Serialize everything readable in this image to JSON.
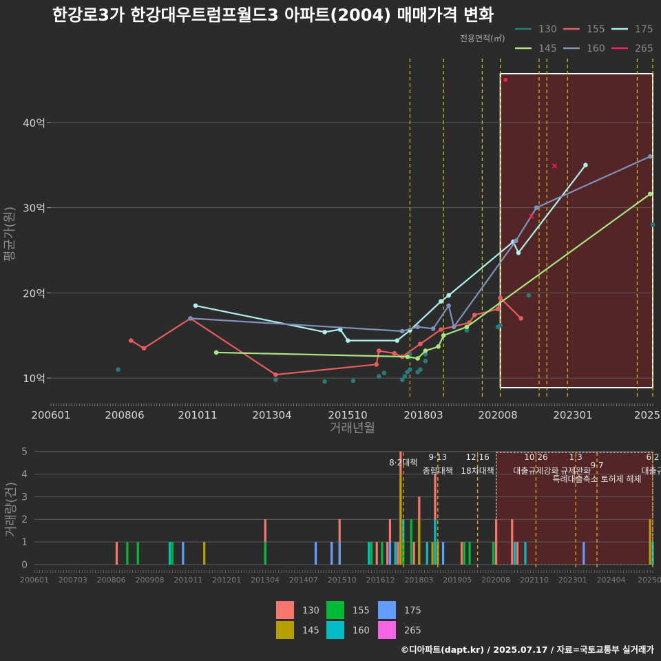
{
  "title": "한강로3가 한강대우트럼프월드3 아파트(2004) 매매가격 변화",
  "legend": {
    "title": "전용면적(㎡)",
    "items": [
      {
        "label": "130",
        "color": "#2a7a78"
      },
      {
        "label": "155",
        "color": "#e85c5c"
      },
      {
        "label": "175",
        "color": "#aef0ee"
      },
      {
        "label": "145",
        "color": "#a8e67f"
      },
      {
        "label": "160",
        "color": "#7f93ba"
      },
      {
        "label": "265",
        "color": "#ff1a5a"
      }
    ]
  },
  "bottom_legend": {
    "items": [
      {
        "label": "130",
        "color": "#f8766d"
      },
      {
        "label": "155",
        "color": "#00ba38"
      },
      {
        "label": "175",
        "color": "#619cff"
      },
      {
        "label": "145",
        "color": "#b79f00"
      },
      {
        "label": "160",
        "color": "#00bfc4"
      },
      {
        "label": "265",
        "color": "#f564e3"
      }
    ]
  },
  "footer": "©디아파트(dapt.kr) / 2025.07.17 / 자료=국토교통부 실거래가",
  "chart_data": [
    {
      "type": "line",
      "xlabel": "거래년월",
      "ylabel": "평균가(원)",
      "x_ticks": [
        "200601",
        "200806",
        "201011",
        "201304",
        "201510",
        "201803",
        "202008",
        "202301",
        "2025"
      ],
      "y_ticks": [
        {
          "value": 10,
          "label": "10억"
        },
        {
          "value": 20,
          "label": "20억"
        },
        {
          "value": 30,
          "label": "30억"
        },
        {
          "value": 40,
          "label": "40억"
        }
      ],
      "ylim": [
        7.5,
        47.5
      ],
      "xlim": [
        "2006-01",
        "2025-06"
      ],
      "grid": true,
      "highlight_box": {
        "x_start": "2020-07",
        "x_end": "2025-06"
      },
      "event_lines": [
        "2017-08",
        "2018-09",
        "2019-12",
        "2020-07",
        "2021-10",
        "2022-01",
        "2022-09",
        "2024-12",
        "2025-06"
      ],
      "series": [
        {
          "name": "130",
          "color": "#2a7a78",
          "mode": "points",
          "points": [
            [
              "2008-03",
              11.0
            ],
            [
              "2013-04",
              9.8
            ],
            [
              "2014-11",
              9.6
            ],
            [
              "2015-10",
              9.7
            ],
            [
              "2016-08",
              10.2
            ],
            [
              "2016-10",
              10.6
            ],
            [
              "2017-05",
              9.8
            ],
            [
              "2017-06",
              10.2
            ],
            [
              "2017-07",
              10.7
            ],
            [
              "2017-08",
              11.0
            ],
            [
              "2017-08",
              12.8
            ],
            [
              "2017-11",
              10.7
            ],
            [
              "2017-12",
              11.0
            ],
            [
              "2018-02",
              12.0
            ],
            [
              "2018-02",
              12.8
            ],
            [
              "2019-06",
              15.6
            ],
            [
              "2020-06",
              16.0
            ],
            [
              "2020-07",
              16.2
            ],
            [
              "2021-06",
              19.7
            ],
            [
              "2025-06",
              28.0
            ]
          ]
        },
        {
          "name": "155",
          "color": "#e85c5c",
          "mode": "line",
          "points": [
            [
              "2008-08",
              14.4
            ],
            [
              "2009-01",
              13.5
            ],
            [
              "2010-07",
              17.0
            ],
            [
              "2013-04",
              10.4
            ],
            [
              "2016-07",
              11.6
            ],
            [
              "2016-08",
              13.2
            ],
            [
              "2017-02",
              12.9
            ],
            [
              "2017-05",
              12.5
            ],
            [
              "2017-12",
              14.0
            ],
            [
              "2018-08",
              15.7
            ],
            [
              "2019-07",
              16.5
            ],
            [
              "2019-09",
              17.4
            ],
            [
              "2020-06",
              18.1
            ],
            [
              "2020-07",
              19.4
            ],
            [
              "2021-03",
              17.0
            ]
          ]
        },
        {
          "name": "175",
          "color": "#aef0ee",
          "mode": "line",
          "points": [
            [
              "2010-09",
              18.5
            ],
            [
              "2014-11",
              15.4
            ],
            [
              "2015-05",
              15.7
            ],
            [
              "2015-08",
              14.4
            ],
            [
              "2017-03",
              14.4
            ],
            [
              "2017-08",
              15.6
            ],
            [
              "2018-08",
              19.0
            ],
            [
              "2018-11",
              19.7
            ],
            [
              "2020-12",
              26.0
            ],
            [
              "2021-02",
              24.7
            ],
            [
              "2023-04",
              35.0
            ]
          ]
        },
        {
          "name": "145",
          "color": "#a8e67f",
          "mode": "line",
          "points": [
            [
              "2011-05",
              13.0
            ],
            [
              "2017-07",
              12.5
            ],
            [
              "2017-11",
              12.3
            ],
            [
              "2018-02",
              13.2
            ],
            [
              "2018-07",
              13.7
            ],
            [
              "2018-09",
              15.0
            ],
            [
              "2019-06",
              16.0
            ],
            [
              "2025-05",
              31.6
            ]
          ]
        },
        {
          "name": "160",
          "color": "#7f93ba",
          "mode": "line",
          "points": [
            [
              "2010-07",
              17.0
            ],
            [
              "2017-05",
              15.5
            ],
            [
              "2017-11",
              16.0
            ],
            [
              "2018-05",
              15.8
            ],
            [
              "2018-11",
              18.5
            ],
            [
              "2019-01",
              16.0
            ],
            [
              "2021-01",
              26.1
            ],
            [
              "2021-09",
              30.0
            ],
            [
              "2025-05",
              36.0
            ]
          ]
        },
        {
          "name": "265",
          "color": "#ff1a5a",
          "mode": "points",
          "points": [
            [
              "2020-09",
              45.0
            ],
            [
              "2022-04",
              34.9
            ],
            [
              "2021-07",
              29.0
            ]
          ]
        }
      ]
    },
    {
      "type": "bar",
      "ylabel": "거래량(건)",
      "x_ticks": [
        "200601",
        "200703",
        "200806",
        "200908",
        "201011",
        "201201",
        "201304",
        "201407",
        "201510",
        "201612",
        "201803",
        "201905",
        "202008",
        "202110",
        "202301",
        "202404",
        "20250"
      ],
      "y_ticks": [
        0,
        1,
        2,
        3,
        4,
        5
      ],
      "ylim": [
        0,
        5.2
      ],
      "events": [
        {
          "date": "2017-08",
          "label": "8·2대책",
          "row": 0
        },
        {
          "date": "2018-09",
          "label": "9·13",
          "label2": "종합대책",
          "row": 1
        },
        {
          "date": "2019-12",
          "label": "12·16",
          "label2": "18차대책",
          "row": 1
        },
        {
          "date": "2021-10",
          "label": "10·26",
          "label2": "대출규제강화",
          "row": 1
        },
        {
          "date": "2023-01",
          "label": "1·3",
          "label2": "규제완화",
          "row": 1
        },
        {
          "date": "2023-09",
          "label": "9·7",
          "label2": "특례대출축소 토허제 해제",
          "row": 2
        },
        {
          "date": "2025-06",
          "label": "6·2",
          "label2": "대출규",
          "row": 1
        }
      ],
      "bars": [
        {
          "series": "130",
          "date": "2008-08",
          "value": 1
        },
        {
          "series": "155",
          "date": "2008-12",
          "value": 1
        },
        {
          "series": "155",
          "date": "2009-04",
          "value": 1
        },
        {
          "series": "160",
          "date": "2010-04",
          "value": 1
        },
        {
          "series": "155",
          "date": "2010-05",
          "value": 1
        },
        {
          "series": "175",
          "date": "2010-09",
          "value": 1
        },
        {
          "series": "145",
          "date": "2011-05",
          "value": 1
        },
        {
          "series": "130",
          "date": "2013-04",
          "value": 2
        },
        {
          "series": "155",
          "date": "2013-04",
          "value": 1
        },
        {
          "series": "175",
          "date": "2014-11",
          "value": 1
        },
        {
          "series": "130",
          "date": "2015-05",
          "value": 1
        },
        {
          "series": "175",
          "date": "2015-05",
          "value": 1
        },
        {
          "series": "130",
          "date": "2015-08",
          "value": 2
        },
        {
          "series": "175",
          "date": "2015-08",
          "value": 1
        },
        {
          "series": "155",
          "date": "2016-07",
          "value": 1
        },
        {
          "series": "160",
          "date": "2016-07",
          "value": 1
        },
        {
          "series": "130",
          "date": "2016-08",
          "value": 1
        },
        {
          "series": "155",
          "date": "2016-08",
          "value": 1
        },
        {
          "series": "130",
          "date": "2016-10",
          "value": 1
        },
        {
          "series": "155",
          "date": "2016-12",
          "value": 1
        },
        {
          "series": "130",
          "date": "2017-02",
          "value": 1
        },
        {
          "series": "130",
          "date": "2017-03",
          "value": 2
        },
        {
          "series": "175",
          "date": "2017-03",
          "value": 1
        },
        {
          "series": "130",
          "date": "2017-05",
          "value": 1
        },
        {
          "series": "160",
          "date": "2017-05",
          "value": 1
        },
        {
          "series": "130",
          "date": "2017-06",
          "value": 1
        },
        {
          "series": "130",
          "date": "2017-07",
          "value": 5
        },
        {
          "series": "145",
          "date": "2017-07",
          "value": 4
        },
        {
          "series": "160",
          "date": "2017-08",
          "value": 2
        },
        {
          "series": "155",
          "date": "2017-08",
          "value": 1
        },
        {
          "series": "155",
          "date": "2017-11",
          "value": 2
        },
        {
          "series": "130",
          "date": "2017-12",
          "value": 1
        },
        {
          "series": "130",
          "date": "2018-02",
          "value": 3
        },
        {
          "series": "145",
          "date": "2018-02",
          "value": 2
        },
        {
          "series": "130",
          "date": "2018-05",
          "value": 1
        },
        {
          "series": "160",
          "date": "2018-05",
          "value": 1
        },
        {
          "series": "145",
          "date": "2018-07",
          "value": 1
        },
        {
          "series": "130",
          "date": "2018-08",
          "value": 4
        },
        {
          "series": "160",
          "date": "2018-08",
          "value": 2
        },
        {
          "series": "145",
          "date": "2018-09",
          "value": 1
        },
        {
          "series": "175",
          "date": "2018-11",
          "value": 1
        },
        {
          "series": "130",
          "date": "2019-06",
          "value": 1
        },
        {
          "series": "155",
          "date": "2019-07",
          "value": 1
        },
        {
          "series": "155",
          "date": "2019-09",
          "value": 1
        },
        {
          "series": "160",
          "date": "2020-06",
          "value": 1
        },
        {
          "series": "155",
          "date": "2020-06",
          "value": 1
        },
        {
          "series": "130",
          "date": "2020-07",
          "value": 2
        },
        {
          "series": "130",
          "date": "2021-01",
          "value": 2
        },
        {
          "series": "160",
          "date": "2021-02",
          "value": 1
        },
        {
          "series": "130",
          "date": "2021-03",
          "value": 1
        },
        {
          "series": "160",
          "date": "2021-06",
          "value": 1
        },
        {
          "series": "175",
          "date": "2023-04",
          "value": 1
        },
        {
          "series": "145",
          "date": "2025-05",
          "value": 2
        },
        {
          "series": "160",
          "date": "2025-06",
          "value": 1
        }
      ]
    }
  ]
}
